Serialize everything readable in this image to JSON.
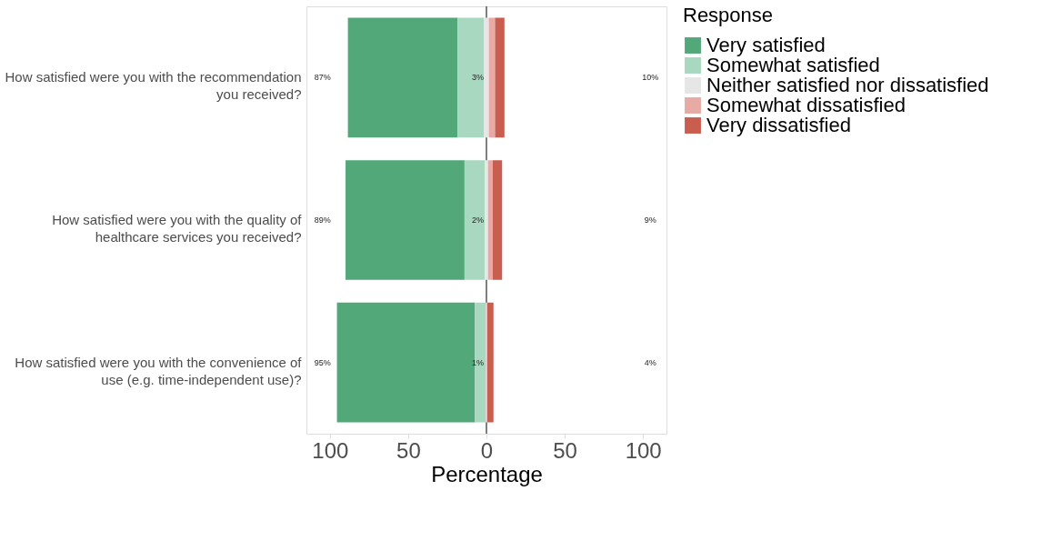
{
  "chart_data": {
    "type": "bar",
    "orientation": "horizontal",
    "categories": [
      "How satisfied were you with the recommendation\nyou received?",
      "How satisfied were you with the quality of\nhealthcare services you received?",
      "How satisfied were you with the convenience of\nuse (e.g. time-independent use)?"
    ],
    "series": [
      {
        "name": "Very satisfied",
        "color": "#52a878",
        "values": [
          70,
          76,
          88
        ],
        "base": [
          -88.5,
          -90,
          -95.5
        ]
      },
      {
        "name": "Somewhat satisfied",
        "color": "#a9d8c0",
        "values": [
          17,
          13,
          7
        ],
        "base": [
          -18.5,
          -14,
          -7.5
        ]
      },
      {
        "name": "Neither satisfied nor dissatisfied",
        "color": "#e6e6e6",
        "values": [
          3,
          2,
          1
        ],
        "base": [
          -1.5,
          -1,
          -0.5
        ]
      },
      {
        "name": "Somewhat dissatisfied",
        "color": "#e8aaa4",
        "values": [
          4,
          3,
          null
        ],
        "base": [
          1.5,
          1,
          null
        ]
      },
      {
        "name": "Very dissatisfied",
        "color": "#c95e50",
        "values": [
          6,
          6,
          4
        ],
        "base": [
          5.5,
          4,
          0.5
        ]
      }
    ],
    "xlim": [
      -115,
      115
    ],
    "xticks": [
      {
        "value": -100,
        "label": "100"
      },
      {
        "value": -50,
        "label": "50"
      },
      0,
      50,
      {
        "value": 100,
        "label": "100"
      }
    ],
    "xlabel": "Percentage",
    "legend_title": "Response",
    "legend": "right",
    "grid": false,
    "ref_lines": [
      {
        "axis": "x",
        "value": 0,
        "color": "#555555"
      }
    ],
    "annotations": [
      "87%",
      "3%",
      "10%",
      "89%",
      "2%",
      "9%",
      "95%",
      "1%",
      "4%"
    ]
  }
}
